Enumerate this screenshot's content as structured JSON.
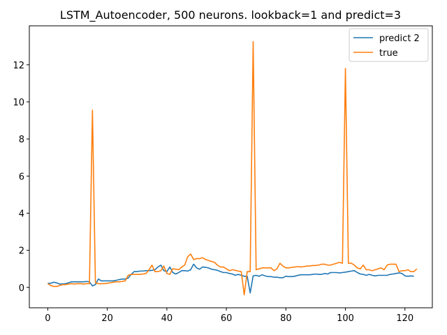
{
  "chart_data": {
    "type": "line",
    "title": "LSTM_Autoencoder, 500 neurons. lookback=1 and predict=3",
    "xlabel": "",
    "ylabel": "",
    "xlim": [
      -6.2,
      129.2
    ],
    "ylim": [
      -1.1,
      14.1
    ],
    "x_ticks": [
      0,
      20,
      40,
      60,
      80,
      100,
      120
    ],
    "y_ticks": [
      0,
      2,
      4,
      6,
      8,
      10,
      12
    ],
    "grid": false,
    "legend_position": "top-right",
    "series": [
      {
        "name": "predict 2",
        "color": "#1f77b4",
        "values": [
          0.22,
          0.22,
          0.28,
          0.24,
          0.18,
          0.18,
          0.2,
          0.25,
          0.3,
          0.3,
          0.3,
          0.3,
          0.3,
          0.32,
          0.3,
          0.08,
          0.15,
          0.45,
          0.35,
          0.35,
          0.35,
          0.35,
          0.35,
          0.38,
          0.42,
          0.45,
          0.45,
          0.5,
          0.7,
          0.85,
          0.85,
          0.88,
          0.88,
          0.9,
          0.9,
          0.92,
          0.95,
          1.1,
          1.2,
          0.9,
          0.85,
          1.1,
          0.8,
          0.72,
          0.8,
          0.9,
          0.9,
          0.88,
          0.95,
          1.25,
          1.05,
          0.98,
          1.1,
          1.08,
          1.05,
          0.98,
          0.95,
          0.92,
          0.85,
          0.8,
          0.8,
          0.75,
          0.72,
          0.65,
          0.7,
          0.65,
          0.6,
          0.6,
          -0.3,
          0.62,
          0.65,
          0.6,
          0.68,
          0.62,
          0.58,
          0.58,
          0.55,
          0.55,
          0.52,
          0.52,
          0.6,
          0.58,
          0.58,
          0.6,
          0.65,
          0.68,
          0.68,
          0.68,
          0.68,
          0.7,
          0.72,
          0.7,
          0.7,
          0.75,
          0.72,
          0.8,
          0.8,
          0.8,
          0.78,
          0.8,
          0.82,
          0.85,
          0.88,
          0.9,
          0.8,
          0.72,
          0.7,
          0.65,
          0.7,
          0.65,
          0.62,
          0.65,
          0.65,
          0.65,
          0.65,
          0.7,
          0.72,
          0.75,
          0.78,
          0.75,
          0.62,
          0.6,
          0.62,
          0.6
        ]
      },
      {
        "name": "true",
        "color": "#ff7f0e",
        "values": [
          0.2,
          0.1,
          0.05,
          0.05,
          0.1,
          0.15,
          0.15,
          0.18,
          0.2,
          0.18,
          0.2,
          0.2,
          0.18,
          0.2,
          0.2,
          9.55,
          0.25,
          0.2,
          0.2,
          0.2,
          0.22,
          0.25,
          0.28,
          0.3,
          0.3,
          0.32,
          0.35,
          0.65,
          0.7,
          0.7,
          0.7,
          0.7,
          0.72,
          0.75,
          0.95,
          1.2,
          0.85,
          0.85,
          0.9,
          1.15,
          0.75,
          0.7,
          1.0,
          0.98,
          0.95,
          1.1,
          1.2,
          1.65,
          1.8,
          1.5,
          1.55,
          1.55,
          1.6,
          1.5,
          1.45,
          1.4,
          1.35,
          1.2,
          1.1,
          1.1,
          1.0,
          0.9,
          0.95,
          0.92,
          0.88,
          0.85,
          -0.4,
          0.85,
          0.85,
          13.25,
          0.95,
          1.0,
          1.05,
          1.05,
          1.05,
          1.05,
          0.9,
          1.0,
          1.3,
          1.15,
          1.05,
          1.05,
          1.08,
          1.1,
          1.12,
          1.1,
          1.12,
          1.15,
          1.15,
          1.18,
          1.18,
          1.2,
          1.25,
          1.25,
          1.2,
          1.2,
          1.25,
          1.3,
          1.35,
          1.3,
          11.8,
          1.3,
          1.3,
          1.2,
          1.05,
          1.0,
          1.2,
          0.95,
          0.95,
          0.9,
          0.95,
          1.0,
          1.05,
          0.95,
          1.2,
          1.25,
          1.25,
          1.25,
          0.85,
          0.9,
          0.9,
          0.95,
          0.85,
          0.85,
          1.0
        ]
      }
    ]
  }
}
